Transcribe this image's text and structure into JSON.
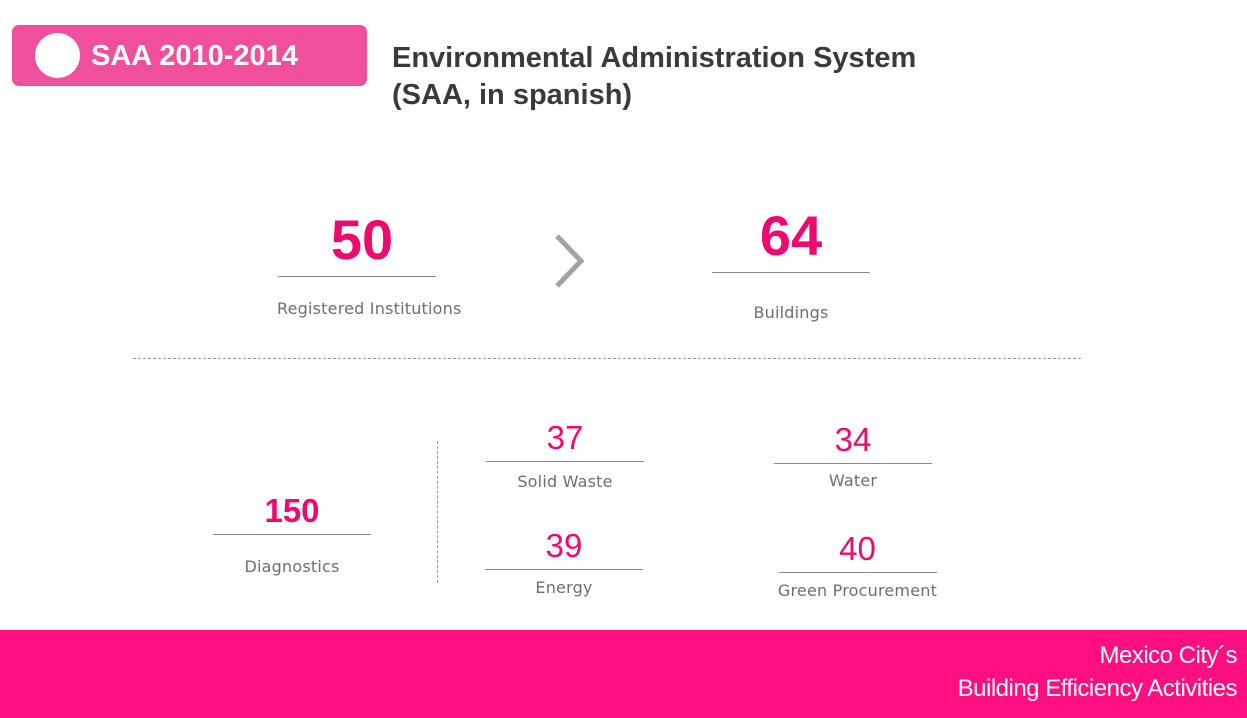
{
  "header": {
    "badge_label": "SAA 2010-2014",
    "title_line1": "Environmental Administration System",
    "title_line2": "(SAA, in spanish)"
  },
  "top_stats": [
    {
      "value": "50",
      "label": "Registered Institutions"
    },
    {
      "value": "64",
      "label": "Buildings"
    }
  ],
  "diagnostics": {
    "value": "150",
    "label": "Diagnostics"
  },
  "categories": [
    {
      "value": "37",
      "label": "Solid Waste"
    },
    {
      "value": "34",
      "label": "Water"
    },
    {
      "value": "39",
      "label": "Energy"
    },
    {
      "value": "40",
      "label": "Green Procurement"
    }
  ],
  "footer": {
    "line1": "Mexico City´s",
    "line2": "Building Efficiency Activities"
  },
  "colors": {
    "accent": "#ec0a6e",
    "badge": "#f0509b",
    "footer": "#ff0f7f"
  },
  "icons": [
    "chevron-right-icon"
  ]
}
